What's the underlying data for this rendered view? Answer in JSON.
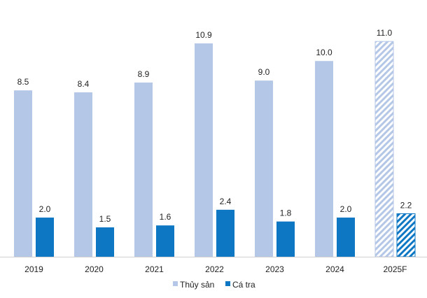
{
  "chart_data": {
    "type": "bar",
    "title": "",
    "xlabel": "",
    "ylabel": "",
    "ylim": [
      0,
      12
    ],
    "grid": false,
    "legend_position": "bottom-center",
    "categories": [
      "2019",
      "2020",
      "2021",
      "2022",
      "2023",
      "2024",
      "2025F"
    ],
    "forecast_categories": [
      "2025F"
    ],
    "series": [
      {
        "name": "Thủy sản",
        "color": "#b4c7e7",
        "values": [
          8.5,
          8.4,
          8.9,
          10.9,
          9.0,
          10.0,
          11.0
        ],
        "labels": [
          "8.5",
          "8.4",
          "8.9",
          "10.9",
          "9.0",
          "10.0",
          "11.0"
        ]
      },
      {
        "name": "Cá tra",
        "color": "#0e77c4",
        "values": [
          2.0,
          1.5,
          1.6,
          2.4,
          1.8,
          2.0,
          2.2
        ],
        "labels": [
          "2.0",
          "1.5",
          "1.6",
          "2.4",
          "1.8",
          "2.0",
          "2.2"
        ]
      }
    ]
  }
}
